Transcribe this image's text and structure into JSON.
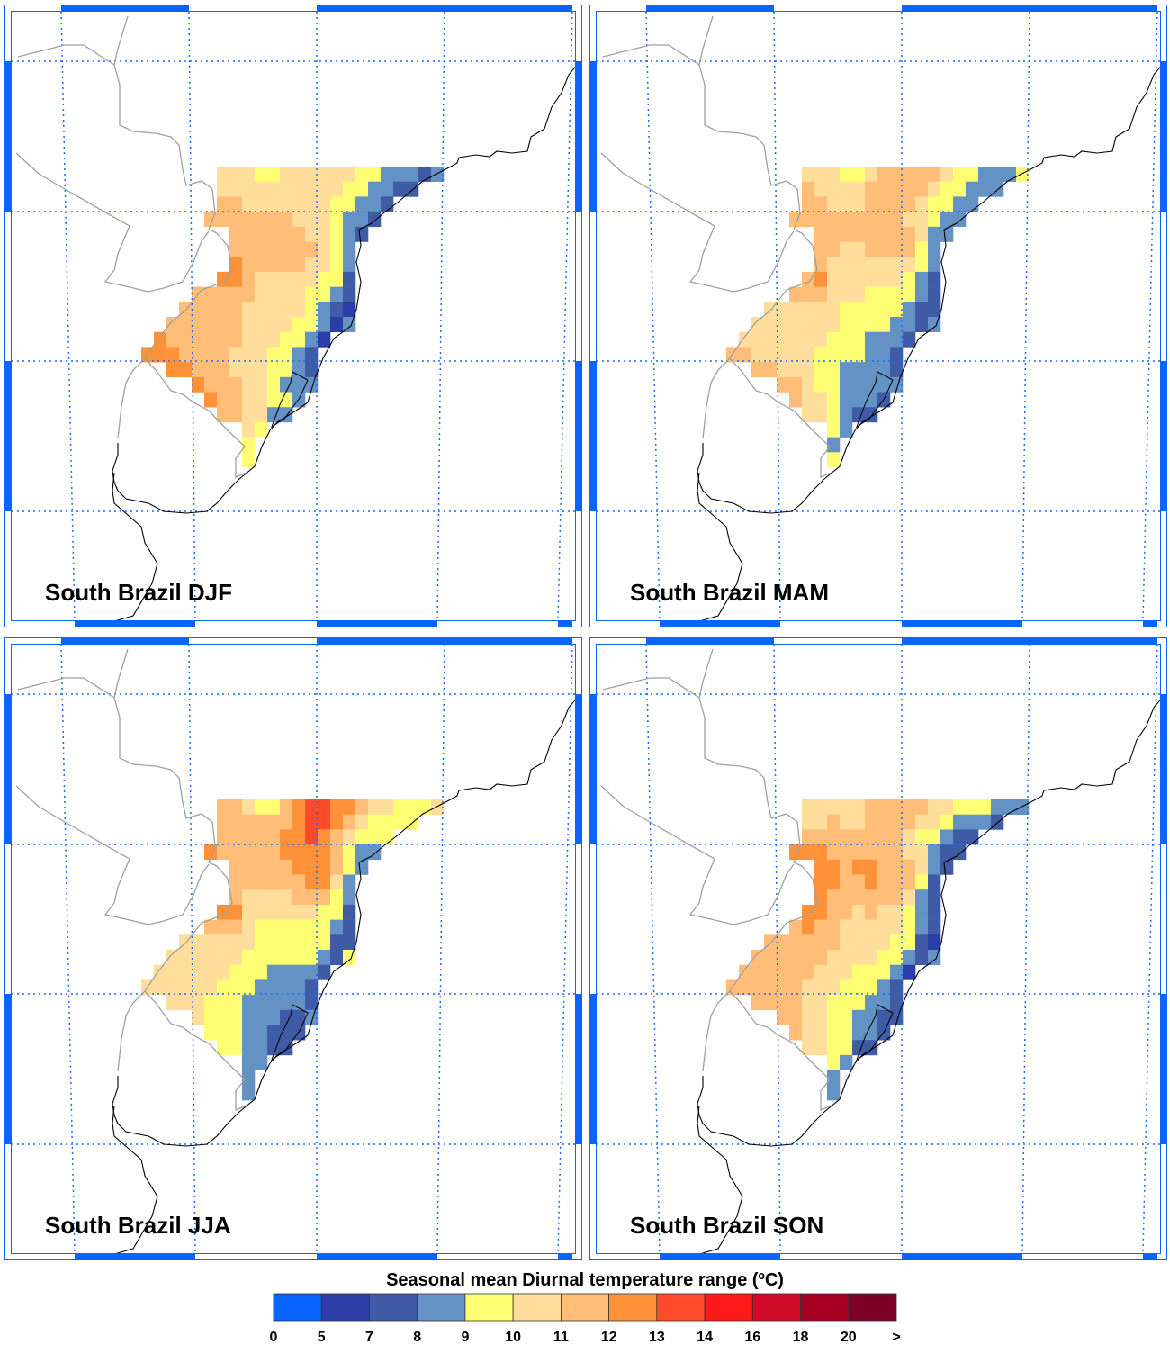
{
  "colorbar": {
    "title": "Seasonal mean Diurnal temperature range (ºC)",
    "labels": [
      "0",
      "5",
      "7",
      "8",
      "9",
      "10",
      "11",
      "12",
      "13",
      "14",
      "16",
      "18",
      "20",
      ">"
    ],
    "colors": [
      "#0a64ff",
      "#2b3ea6",
      "#3f5ba5",
      "#6492c4",
      "#ffff73",
      "#ffdd9a",
      "#ffbd78",
      "#ff9238",
      "#ff4b2a",
      "#ff1a1a",
      "#cf0a26",
      "#a80023",
      "#7c0026"
    ]
  },
  "colors": {
    "frame": "#0a64ff",
    "gridline": "#1a6cff",
    "coastline": "#000000",
    "border": "#a0a0a0"
  },
  "chart_data": [
    {
      "type": "heatmap",
      "title": "South Brazil DJF",
      "legend": "bottom",
      "grid": [
        "......555445555554433323",
        "......5555555555443322..",
        "......66555555544332....",
        ".....66666665554332.....",
        ".......66666655432......",
        ".......6666666543.......",
        ".......7666665543.......",
        "......77655555442.......",
        "....6666655554432.......",
        "...66666555554321.......",
        "..666666555544313.......",
        ".76666665554431.........",
        "77766665554432..........",
        "..776665554432..........",
        "....7666554333..........",
        ".....76655443...........",
        "......665533............",
        "........54..............",
        "........4...............",
        "........4..............."
      ]
    },
    {
      "type": "heatmap",
      "title": "South Brazil MAM",
      "legend": "bottom",
      "grid": [
        "......555445666665443334",
        "......6555566666544333..",
        "......66555666654433....",
        ".....66666666655433.....",
        ".......66666666533......",
        ".......6655666643.......",
        ".......6555555543.......",
        "......67555555432.......",
        ".....666555444432.......",
        "...55555544444322.......",
        "..555555544443323.......",
        ".55555554443332.........",
        "66555554444332..........",
        "..665554433332..........",
        "....6654433333..........",
        ".....65543332...........",
        "......554322............",
        "........43..............",
        "........3...............",
        "........4..............."
      ]
    },
    {
      "type": "heatmap",
      "title": "South Brazil JJA",
      "legend": "bottom",
      "grid": [
        "......665446788776554445",
        "......6666667887654444..",
        "......66666778765444....",
        ".....76666677776433.....",
        ".......66666777643......",
        ".......6666667753.......",
        ".......6555566643.......",
        "......77555555442.......",
        ".....666544444432.......",
        "...55555544444422.......",
        "..555555444444324.......",
        ".55555544433332.........",
        "55555544433332..........",
        "..555444333332..........",
        "....5444333223..........",
        ".....44433222...........",
        "......443322............",
        "........33..............",
        "........3...............",
        "........3..............."
      ]
    },
    {
      "type": "heatmap",
      "title": "South Brazil SON",
      "legend": "bottom",
      "grid": [
        "......555556666655444333",
        "......5565566665543332..",
        "......66666666544322....",
        ".....77766666655322.....",
        ".......77677666532......",
        ".......7766766642.......",
        ".......7666666532.......",
        "......77665655432.......",
        ".....676655555432.......",
        "...66666655554421.......",
        "..666666555544323.......",
        ".66666655544431.........",
        "66666655544432..........",
        "..666655444332..........",
        "....6655443322..........",
        ".....65544332...........",
        "......554422............",
        "........43..............",
        "........3...............",
        "........3..............."
      ]
    }
  ]
}
